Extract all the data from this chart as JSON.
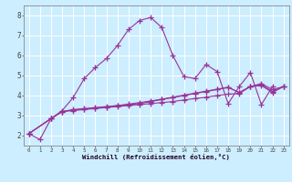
{
  "xlabel": "Windchill (Refroidissement éolien,°C)",
  "background_color": "#cceeff",
  "grid_color": "#aaddcc",
  "line_color": "#993399",
  "xlim": [
    -0.5,
    23.5
  ],
  "ylim": [
    1.5,
    8.5
  ],
  "yticks": [
    2,
    3,
    4,
    5,
    6,
    7,
    8
  ],
  "xticks": [
    0,
    1,
    2,
    3,
    4,
    5,
    6,
    7,
    8,
    9,
    10,
    11,
    12,
    13,
    14,
    15,
    16,
    17,
    18,
    19,
    20,
    21,
    22,
    23
  ],
  "series1_x": [
    0,
    1,
    2,
    3,
    4,
    5,
    6,
    7,
    8,
    9,
    10,
    11,
    12,
    13,
    14,
    15,
    16,
    17,
    18,
    19,
    20,
    21,
    22
  ],
  "series1_y": [
    2.1,
    1.8,
    2.85,
    3.25,
    3.9,
    4.85,
    5.4,
    5.85,
    6.5,
    7.3,
    7.75,
    7.9,
    7.4,
    6.0,
    4.95,
    4.85,
    5.55,
    5.2,
    3.6,
    4.45,
    5.15,
    3.55,
    4.45
  ],
  "series2_x": [
    0,
    2,
    3,
    4,
    5,
    6,
    7,
    8,
    9,
    10,
    11,
    12,
    13,
    14,
    15,
    16,
    17,
    18,
    19,
    20,
    21,
    22,
    23
  ],
  "series2_y": [
    2.1,
    2.85,
    3.2,
    3.3,
    3.35,
    3.4,
    3.45,
    3.5,
    3.55,
    3.6,
    3.7,
    3.8,
    3.9,
    4.0,
    4.1,
    4.2,
    4.3,
    4.4,
    4.15,
    4.45,
    4.6,
    4.3,
    4.45
  ],
  "series3_x": [
    0,
    2,
    3,
    4,
    5,
    6,
    7,
    8,
    9,
    10,
    11,
    12,
    13,
    14,
    15,
    16,
    17,
    18,
    19,
    20,
    21,
    22,
    23
  ],
  "series3_y": [
    2.1,
    2.85,
    3.2,
    3.28,
    3.33,
    3.38,
    3.43,
    3.5,
    3.57,
    3.65,
    3.73,
    3.82,
    3.92,
    4.02,
    4.12,
    4.22,
    4.32,
    4.42,
    4.15,
    4.45,
    4.55,
    4.2,
    4.45
  ],
  "series4_x": [
    0,
    2,
    3,
    4,
    5,
    6,
    7,
    8,
    9,
    10,
    11,
    12,
    13,
    14,
    15,
    16,
    17,
    18,
    19,
    20,
    21,
    22,
    23
  ],
  "series4_y": [
    2.1,
    2.85,
    3.2,
    3.25,
    3.3,
    3.35,
    3.4,
    3.45,
    3.5,
    3.55,
    3.6,
    3.65,
    3.7,
    3.78,
    3.85,
    3.92,
    4.0,
    4.07,
    4.1,
    4.45,
    4.5,
    4.15,
    4.45
  ],
  "marker": "+",
  "markersize": 4,
  "linewidth": 0.8
}
